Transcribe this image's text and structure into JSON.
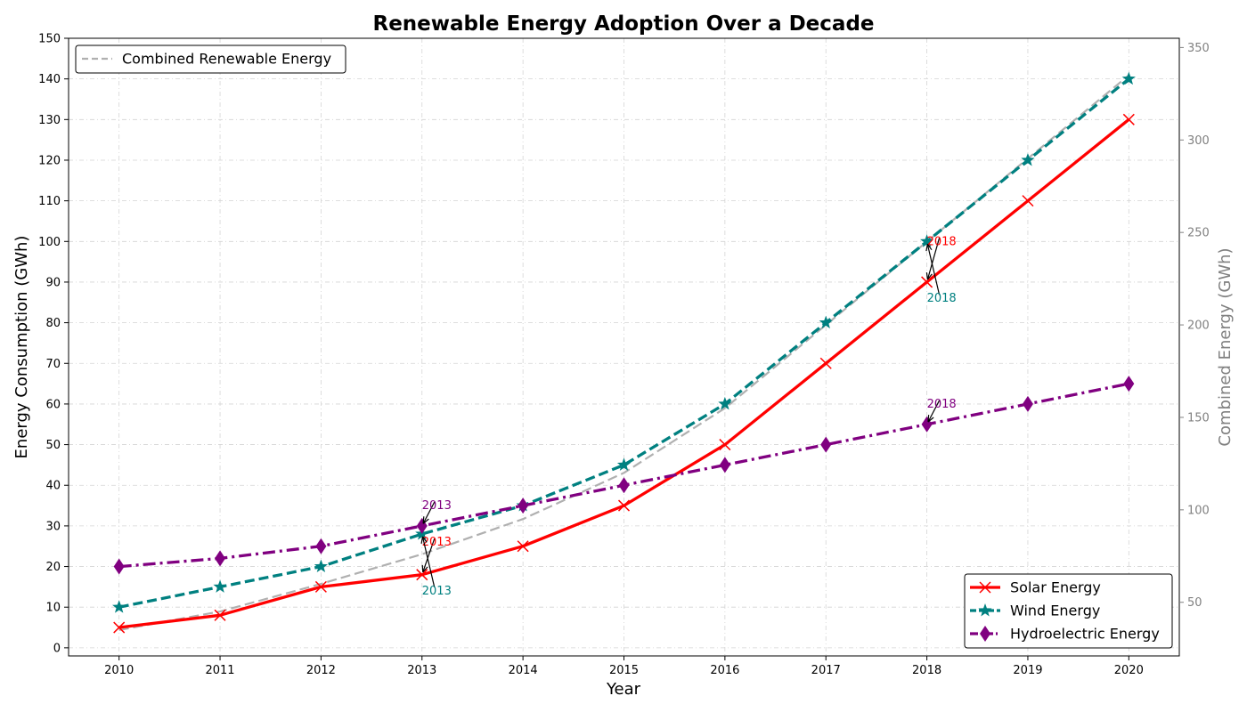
{
  "chart_data": {
    "type": "line",
    "title": "Renewable Energy Adoption Over a Decade",
    "xlabel": "Year",
    "ylabel": "Energy Consumption (GWh)",
    "ylabel_right": "Combined Energy (GWh)",
    "x": [
      2010,
      2011,
      2012,
      2013,
      2014,
      2015,
      2016,
      2017,
      2018,
      2019,
      2020
    ],
    "ylim": [
      -2,
      150
    ],
    "yticks": [
      0,
      10,
      20,
      30,
      40,
      50,
      60,
      70,
      80,
      90,
      100,
      110,
      120,
      130,
      140,
      150
    ],
    "ylim_right": [
      21,
      355
    ],
    "yticks_right": [
      50,
      100,
      150,
      200,
      250,
      300,
      350
    ],
    "grid": true,
    "series": [
      {
        "name": "Solar Energy",
        "axis": "left",
        "color": "#ff0000",
        "marker": "x",
        "style": "solid",
        "values": [
          5,
          8,
          15,
          18,
          25,
          35,
          50,
          70,
          90,
          110,
          130
        ]
      },
      {
        "name": "Wind Energy",
        "axis": "left",
        "color": "#008080",
        "marker": "star",
        "style": "dashed",
        "values": [
          10,
          15,
          20,
          28,
          35,
          45,
          60,
          80,
          100,
          120,
          140
        ]
      },
      {
        "name": "Hydroelectric Energy",
        "axis": "left",
        "color": "#800080",
        "marker": "diamond",
        "style": "dashdot",
        "values": [
          20,
          22,
          25,
          30,
          35,
          40,
          45,
          50,
          55,
          60,
          65
        ]
      },
      {
        "name": "Combined Renewable Energy",
        "axis": "right",
        "color": "#b0b0b0",
        "marker": "none",
        "style": "dashed",
        "values": [
          35,
          45,
          60,
          76,
          95,
          120,
          155,
          200,
          245,
          290,
          335
        ]
      }
    ],
    "annotations": [
      {
        "text": "2013",
        "series": "Solar Energy",
        "x": 2013,
        "y": 18,
        "text_x": 2013,
        "text_y": 26,
        "color": "#ff0000"
      },
      {
        "text": "2013",
        "series": "Wind Energy",
        "x": 2013,
        "y": 28,
        "text_x": 2013,
        "text_y": 14,
        "color": "#008080"
      },
      {
        "text": "2013",
        "series": "Hydroelectric Energy",
        "x": 2013,
        "y": 30,
        "text_x": 2013,
        "text_y": 35,
        "color": "#800080"
      },
      {
        "text": "2018",
        "series": "Solar Energy",
        "x": 2018,
        "y": 90,
        "text_x": 2018,
        "text_y": 100,
        "color": "#ff0000"
      },
      {
        "text": "2018",
        "series": "Wind Energy",
        "x": 2018,
        "y": 100,
        "text_x": 2018,
        "text_y": 86,
        "color": "#008080"
      },
      {
        "text": "2018",
        "series": "Hydroelectric Energy",
        "x": 2018,
        "y": 55,
        "text_x": 2018,
        "text_y": 60,
        "color": "#800080"
      }
    ],
    "legend_main": {
      "placement": "lower-right",
      "entries": [
        "Solar Energy",
        "Wind Energy",
        "Hydroelectric Energy"
      ]
    },
    "legend_secondary": {
      "placement": "upper-left",
      "entries": [
        "Combined Renewable Energy"
      ]
    }
  }
}
